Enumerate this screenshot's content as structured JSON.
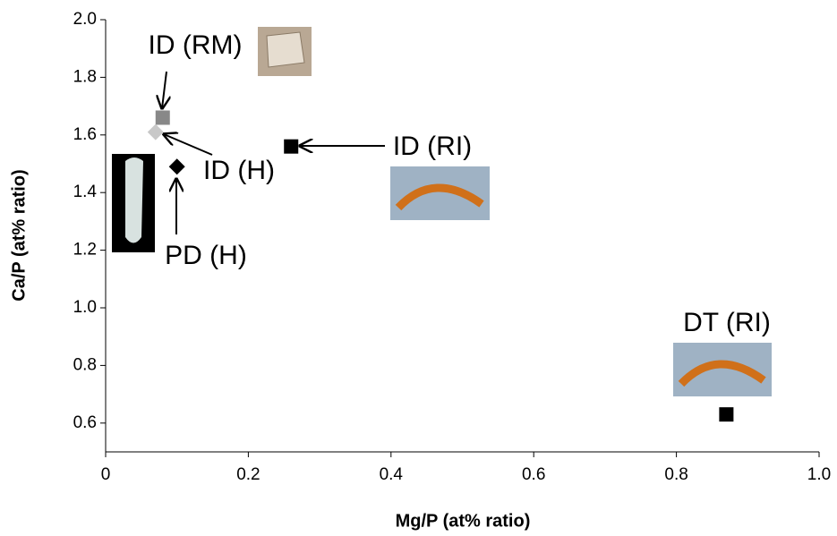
{
  "chart_data": {
    "type": "scatter",
    "xlabel": "Mg/P (at% ratio)",
    "ylabel": "Ca/P (at% ratio)",
    "xlim": [
      0,
      1
    ],
    "ylim": [
      0.5,
      2
    ],
    "xticks": [
      0,
      0.2,
      0.4,
      0.6,
      0.8,
      {
        "value": 1,
        "label": "1.0"
      }
    ],
    "yticks": [
      0.6,
      0.8,
      {
        "value": 1,
        "label": "1.0"
      },
      1.2,
      1.4,
      1.6,
      1.8,
      {
        "value": 2,
        "label": "2.0"
      }
    ],
    "points": [
      {
        "label": "ID (RM)",
        "x": 0.08,
        "y": 1.66,
        "marker": "square",
        "color": "#888888"
      },
      {
        "label": "ID (H)",
        "x": 0.07,
        "y": 1.61,
        "marker": "diamond",
        "color": "#c8c8c8"
      },
      {
        "label": "PD (H)",
        "x": 0.1,
        "y": 1.49,
        "marker": "diamond",
        "color": "#000000"
      },
      {
        "label": "ID (RI)",
        "x": 0.26,
        "y": 1.56,
        "marker": "square",
        "color": "#000000"
      },
      {
        "label": "DT (RI)",
        "x": 0.87,
        "y": 0.63,
        "marker": "square",
        "color": "#000000"
      }
    ]
  }
}
